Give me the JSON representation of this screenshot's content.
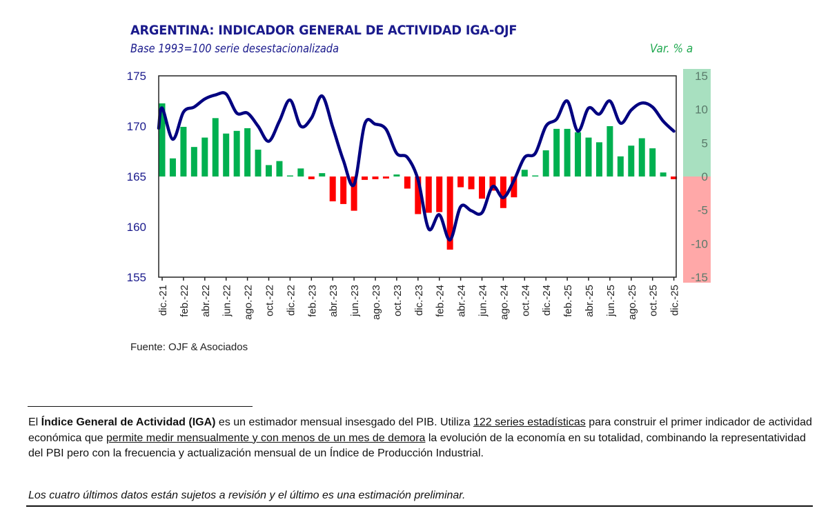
{
  "header": {
    "title": "ARGENTINA: INDICADOR GENERAL DE ACTIVIDAD IGA-OJF",
    "subtitle": "Base 1993=100 serie desestacionalizada",
    "right_axis_title": "Var. % a"
  },
  "source": "Fuente: OJF & Asociados",
  "footnote": {
    "p1_a": "El ",
    "p1_bold": "Índice General de Actividad (IGA)",
    "p1_b": " es un estimador mensual insesgado del PIB. Utiliza ",
    "p1_u1": "122 series estadísticas",
    "p1_c": " para construir el primer indicador de actividad económica que ",
    "p1_u2": "permite medir mensualmente y con menos de un mes de demora",
    "p1_d": " la evolución de la economía en su totalidad, combinando la representatividad del PBI pero con la frecuencia y actualización mensual de un Índice de Producción Industrial.",
    "note": "Los cuatro últimos datos están sujetos a revisión y el último es una estimación preliminar."
  },
  "colors": {
    "title": "#1a1a8c",
    "line": "#000080",
    "positive_bar": "#00b050",
    "negative_bar": "#ff0000",
    "right_axis_positive_bg": "#a8e0c0",
    "right_axis_negative_bg": "#ffa8a8",
    "right_axis_title": "#1fa84f"
  },
  "chart_data": {
    "type": "bar+line",
    "title": "ARGENTINA: INDICADOR GENERAL DE ACTIVIDAD IGA-OJF",
    "subtitle": "Base 1993=100 serie desestacionalizada",
    "xlabel": "",
    "ylabel_left": "",
    "ylabel_right": "Var. % a",
    "ylim_left": [
      155,
      175
    ],
    "yticks_left": [
      155,
      160,
      165,
      170,
      175
    ],
    "ylim_right": [
      -15,
      15
    ],
    "yticks_right": [
      15,
      10,
      5,
      0,
      -5,
      -10,
      -15
    ],
    "grid": false,
    "x": [
      "dic.-21",
      "ene.-22",
      "feb.-22",
      "mar.-22",
      "abr.-22",
      "may.-22",
      "jun.-22",
      "jul.-22",
      "ago.-22",
      "sep.-22",
      "oct.-22",
      "nov.-22",
      "dic.-22",
      "ene.-23",
      "feb.-23",
      "mar.-23",
      "abr.-23",
      "may.-23",
      "jun.-23",
      "jul.-23",
      "ago.-23",
      "sep.-23",
      "oct.-23",
      "nov.-23",
      "dic.-23",
      "ene.-24",
      "feb.-24",
      "mar.-24",
      "abr.-24",
      "may.-24",
      "jun.-24",
      "jul.-24",
      "ago.-24",
      "sep.-24",
      "oct.-24",
      "nov.-24",
      "dic.-24",
      "ene.-25",
      "feb.-25",
      "mar.-25",
      "abr.-25",
      "may.-25",
      "jun.-25",
      "jul.-25",
      "ago.-25",
      "sep.-25",
      "oct.-25",
      "nov.-25",
      "dic.-25"
    ],
    "xtick_labels": [
      "dic.-21",
      "feb.-22",
      "abr.-22",
      "jun.-22",
      "ago.-22",
      "oct.-22",
      "dic.-22",
      "feb.-23",
      "abr.-23",
      "jun.-23",
      "ago.-23",
      "oct.-23",
      "dic.-23",
      "feb.-24",
      "abr.-24",
      "jun.-24",
      "ago.-24",
      "oct.-24",
      "dic.-24",
      "feb.-25",
      "abr.-25",
      "jun.-25",
      "ago.-25",
      "oct.-25",
      "dic.-25"
    ],
    "series": [
      {
        "name": "IGA-OJF (índice, eje izq.)",
        "type": "line",
        "axis": "left",
        "start_value": 169.8,
        "values": [
          171.8,
          168.7,
          171.4,
          171.9,
          172.7,
          173.1,
          173.2,
          171.3,
          171.3,
          170.0,
          168.5,
          170.5,
          172.6,
          170.0,
          170.8,
          173.0,
          169.9,
          166.6,
          164.2,
          170.2,
          170.2,
          169.7,
          167.3,
          166.9,
          164.7,
          159.8,
          161.2,
          158.7,
          162.0,
          161.6,
          161.4,
          164.0,
          162.9,
          164.6,
          166.9,
          167.3,
          170.0,
          170.7,
          172.5,
          169.5,
          171.8,
          171.2,
          172.5,
          170.3,
          171.6,
          172.3,
          171.9,
          170.5,
          169.5
        ]
      },
      {
        "name": "Var. % anual (eje der.)",
        "type": "bar",
        "axis": "right",
        "values": [
          10.9,
          2.7,
          7.4,
          4.4,
          5.8,
          8.7,
          6.4,
          6.8,
          7.2,
          4.0,
          1.7,
          2.3,
          0.1,
          1.2,
          -0.4,
          0.5,
          -3.7,
          -4.1,
          -5.1,
          -0.5,
          -0.4,
          -0.3,
          0.3,
          -1.8,
          -5.6,
          -5.4,
          -5.3,
          -10.9,
          -1.6,
          -1.9,
          -3.3,
          -2.1,
          -4.7,
          -3.1,
          1.0,
          0.1,
          3.9,
          7.1,
          7.1,
          6.6,
          5.8,
          5.1,
          7.5,
          3.0,
          4.6,
          5.7,
          4.2,
          0.6,
          -0.4
        ]
      }
    ],
    "legend": "none"
  }
}
